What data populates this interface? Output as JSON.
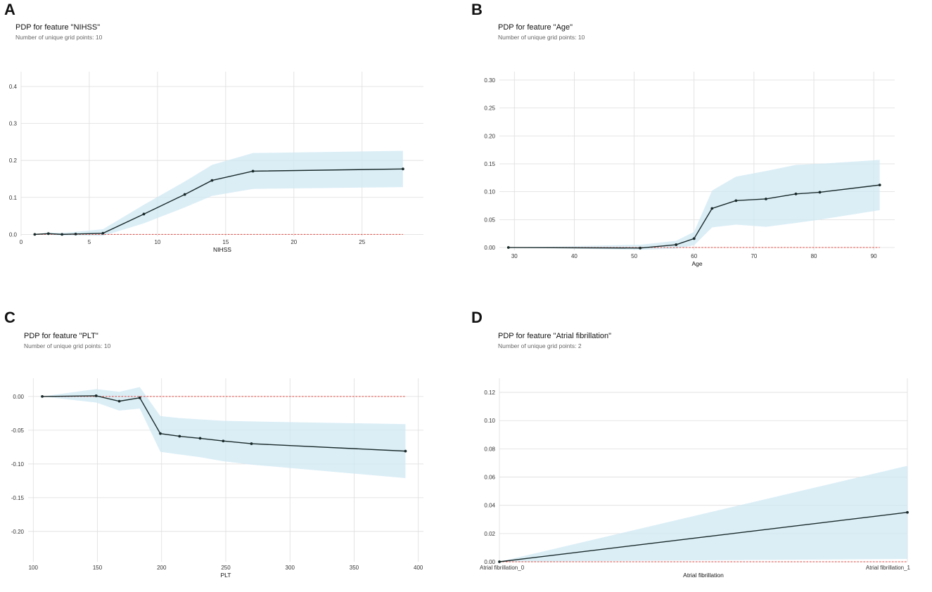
{
  "colors": {
    "band": "#cfe8f3",
    "line": "#1a2a2a",
    "baseline": "#e0463c",
    "grid": "#dddddd"
  },
  "chart_data": [
    {
      "panel": "A",
      "type": "line",
      "title": "PDP for feature \"NIHSS\"",
      "subtitle": "Number of unique grid points: 10",
      "xlabel": "NIHSS",
      "ylabel": "",
      "xlim": [
        0,
        29.5
      ],
      "ylim": [
        -0.005,
        0.44
      ],
      "xticks": [
        0,
        5,
        10,
        15,
        20,
        25
      ],
      "xtick_labels": [
        "0",
        "5",
        "10",
        "15",
        "20",
        "25"
      ],
      "yticks": [
        0,
        0.1,
        0.2,
        0.3,
        0.4
      ],
      "ytick_labels": [
        "0.0",
        "0.1",
        "0.2",
        "0.3",
        "0.4"
      ],
      "x": [
        1,
        2,
        3,
        4,
        6,
        9,
        12,
        14,
        17,
        28
      ],
      "y": [
        0,
        0.002,
        0,
        0.001,
        0.003,
        0.055,
        0.108,
        0.146,
        0.171,
        0.177
      ],
      "upper": [
        0,
        0.005,
        0.004,
        0.007,
        0.014,
        0.08,
        0.143,
        0.188,
        0.22,
        0.226
      ],
      "lower": [
        0,
        -0.001,
        -0.003,
        -0.003,
        -0.004,
        0.03,
        0.073,
        0.104,
        0.123,
        0.128
      ]
    },
    {
      "panel": "B",
      "type": "line",
      "title": "PDP for feature \"Age\"",
      "subtitle": "Number of unique grid points: 10",
      "xlabel": "Age",
      "ylabel": "",
      "xlim": [
        27.5,
        93.5
      ],
      "ylim": [
        -0.005,
        0.315
      ],
      "xticks": [
        30,
        40,
        50,
        60,
        70,
        80,
        90
      ],
      "xtick_labels": [
        "30",
        "40",
        "50",
        "60",
        "70",
        "80",
        "90"
      ],
      "yticks": [
        0,
        0.05,
        0.1,
        0.15,
        0.2,
        0.25,
        0.3
      ],
      "ytick_labels": [
        "0.00",
        "0.05",
        "0.10",
        "0.15",
        "0.20",
        "0.25",
        "0.30"
      ],
      "x": [
        29,
        51,
        57,
        60,
        63,
        67,
        72,
        77,
        81,
        91
      ],
      "y": [
        0,
        -0.001,
        0.005,
        0.016,
        0.07,
        0.084,
        0.087,
        0.096,
        0.099,
        0.112
      ],
      "upper": [
        0,
        0.005,
        0.012,
        0.028,
        0.102,
        0.127,
        0.137,
        0.148,
        0.15,
        0.157
      ],
      "lower": [
        0,
        -0.004,
        -0.002,
        0.004,
        0.036,
        0.041,
        0.037,
        0.044,
        0.05,
        0.067
      ]
    },
    {
      "panel": "C",
      "type": "line",
      "title": "PDP for feature \"PLT\"",
      "subtitle": "Number of unique grid points: 10",
      "xlabel": "PLT",
      "ylabel": "",
      "xlim": [
        96,
        404
      ],
      "ylim": [
        -0.245,
        0.027
      ],
      "xticks": [
        100,
        150,
        200,
        250,
        300,
        350,
        400
      ],
      "xtick_labels": [
        "100",
        "150",
        "200",
        "250",
        "300",
        "350",
        "400"
      ],
      "yticks": [
        0,
        -0.05,
        -0.1,
        -0.15,
        -0.2
      ],
      "ytick_labels": [
        "0.00",
        "-0.05",
        "-0.10",
        "-0.15",
        "-0.20"
      ],
      "x": [
        107,
        149,
        167,
        183,
        199,
        214,
        230,
        248,
        270,
        390
      ],
      "y": [
        0,
        0.001,
        -0.007,
        -0.002,
        -0.055,
        -0.059,
        -0.062,
        -0.066,
        -0.07,
        -0.081
      ],
      "upper": [
        0,
        0.011,
        0.007,
        0.014,
        -0.029,
        -0.032,
        -0.034,
        -0.036,
        -0.037,
        -0.041
      ],
      "lower": [
        0,
        -0.009,
        -0.021,
        -0.018,
        -0.082,
        -0.086,
        -0.09,
        -0.096,
        -0.101,
        -0.121
      ]
    },
    {
      "panel": "D",
      "type": "line",
      "title": "PDP for feature \"Atrial fibrillation\"",
      "subtitle": "Number of unique grid points: 2",
      "xlabel": "Atrial fibrillation",
      "ylabel": "",
      "xlim": [
        0,
        1
      ],
      "ylim": [
        0,
        0.13
      ],
      "xticks": [
        0,
        1
      ],
      "xtick_labels": [
        "Atrial fibrillation_0",
        "Atrial fibrillation_1"
      ],
      "yticks": [
        0,
        0.02,
        0.04,
        0.06,
        0.08,
        0.1,
        0.12
      ],
      "ytick_labels": [
        "0.00",
        "0.02",
        "0.04",
        "0.06",
        "0.08",
        "0.10",
        "0.12"
      ],
      "x": [
        0,
        1
      ],
      "y": [
        0,
        0.035
      ],
      "upper": [
        0,
        0.068
      ],
      "lower": [
        0,
        0.002
      ]
    }
  ]
}
